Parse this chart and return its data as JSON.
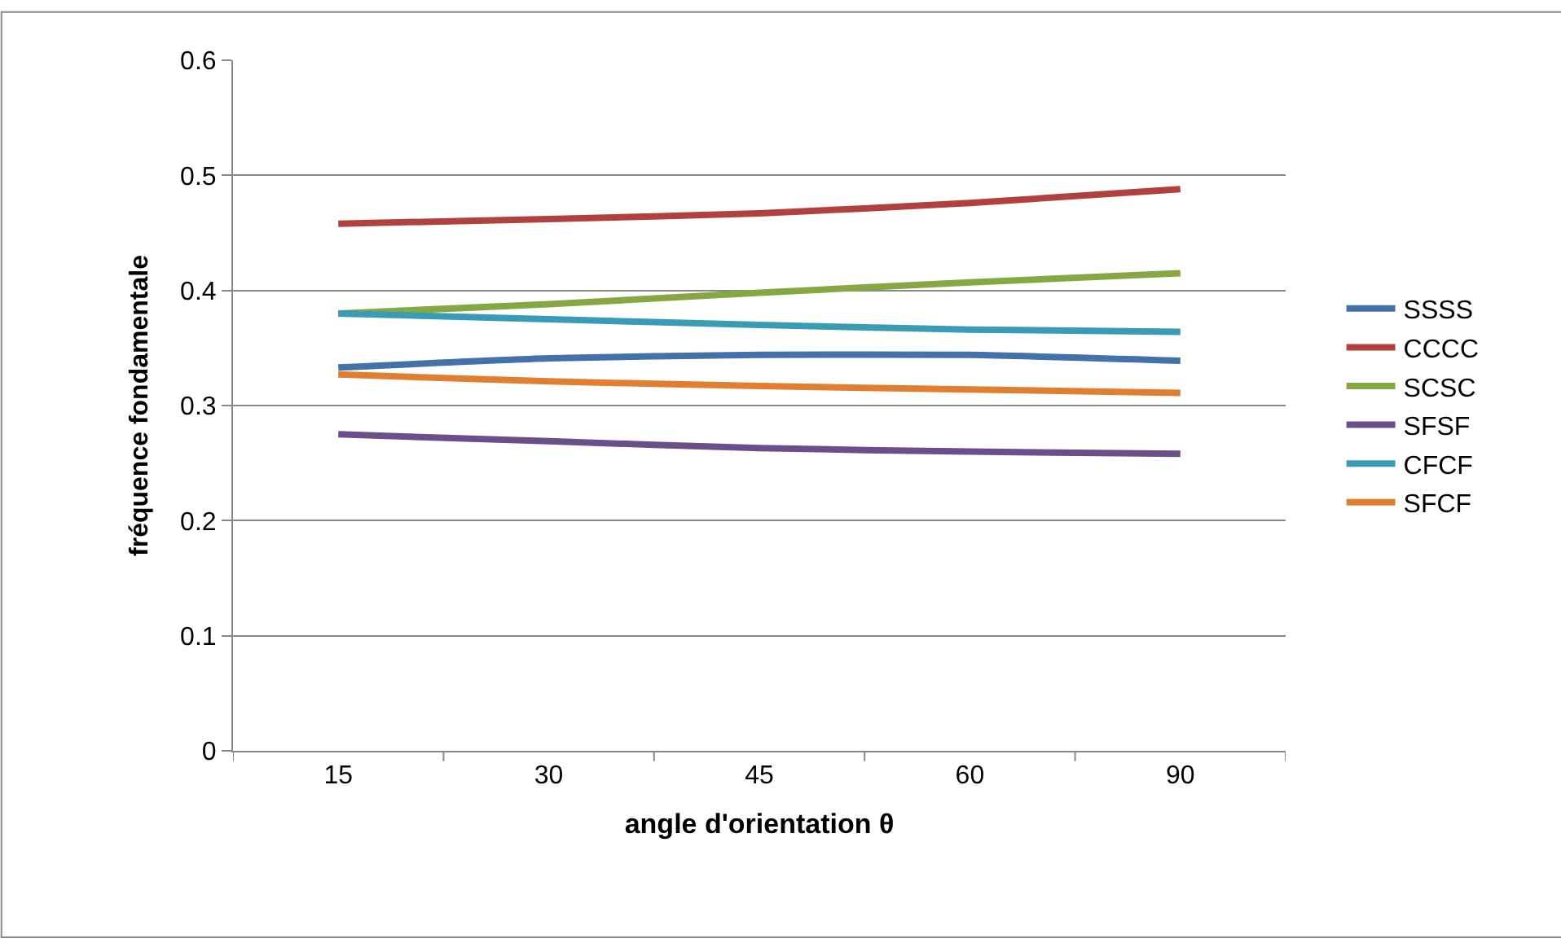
{
  "chart_data": {
    "type": "line",
    "xlabel": "angle d'orientation θ",
    "ylabel": "fréquence fondamentale",
    "categories": [
      "15",
      "30",
      "45",
      "60",
      "90"
    ],
    "ylim": [
      0,
      0.6
    ],
    "yticks": [
      0,
      0.1,
      0.2,
      0.3,
      0.4,
      0.5,
      0.6
    ],
    "grid": "y",
    "legend": "right",
    "marker": "none",
    "line_style": "solid",
    "series": [
      {
        "name": "SSSS",
        "color": "#4472a8",
        "values": [
          0.333,
          0.341,
          0.344,
          0.344,
          0.339
        ]
      },
      {
        "name": "CCCC",
        "color": "#b0413e",
        "values": [
          0.458,
          0.462,
          0.467,
          0.476,
          0.488
        ]
      },
      {
        "name": "SCSC",
        "color": "#86a844",
        "values": [
          0.38,
          0.388,
          0.398,
          0.407,
          0.415
        ]
      },
      {
        "name": "SFSF",
        "color": "#6a4f8a",
        "values": [
          0.275,
          0.269,
          0.263,
          0.26,
          0.258
        ]
      },
      {
        "name": "CFCF",
        "color": "#3a9bb5",
        "values": [
          0.38,
          0.375,
          0.37,
          0.366,
          0.364
        ]
      },
      {
        "name": "SFCF",
        "color": "#e07f32",
        "values": [
          0.327,
          0.321,
          0.317,
          0.314,
          0.311
        ]
      }
    ]
  }
}
